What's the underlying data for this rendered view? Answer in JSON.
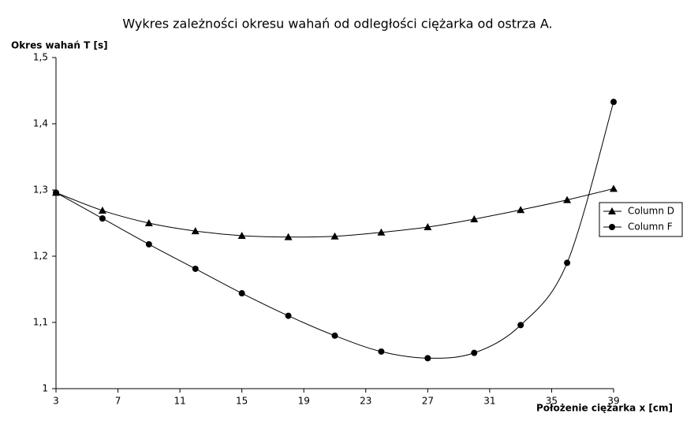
{
  "chart_data": {
    "type": "line",
    "title": "Wykres zależności okresu wahań od odległości ciężarka od ostrza A.",
    "y_label": "Okres wahań T [s]",
    "x_label": "Położenie ciężarka x [cm]",
    "x": [
      3,
      6,
      9,
      12,
      15,
      18,
      21,
      24,
      27,
      30,
      33,
      36,
      39
    ],
    "series": [
      {
        "name": "Column D",
        "color": "#000000",
        "marker": "triangle",
        "values": [
          1.296,
          1.269,
          1.25,
          1.238,
          1.231,
          1.229,
          1.23,
          1.236,
          1.244,
          1.256,
          1.27,
          1.285,
          1.302
        ]
      },
      {
        "name": "Column F",
        "color": "#000000",
        "marker": "circle",
        "values": [
          1.296,
          1.257,
          1.218,
          1.181,
          1.144,
          1.11,
          1.08,
          1.056,
          1.046,
          1.054,
          1.096,
          1.19,
          1.433
        ]
      }
    ],
    "xlim": [
      3,
      39
    ],
    "xticks": [
      3,
      7,
      11,
      15,
      19,
      23,
      27,
      31,
      35,
      39
    ],
    "ylim": [
      1,
      1.5
    ],
    "yticks": [
      1,
      {
        "value": 1.1,
        "label": "1,1"
      },
      {
        "value": 1.2,
        "label": "1,2"
      },
      {
        "value": 1.3,
        "label": "1,3"
      },
      {
        "value": 1.4,
        "label": "1,4"
      },
      {
        "value": 1.5,
        "label": "1,5"
      }
    ],
    "grid": false,
    "legend": "right"
  }
}
